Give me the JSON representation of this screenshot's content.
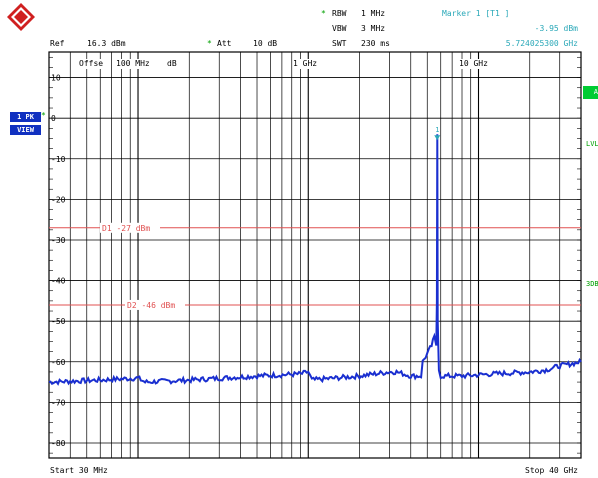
{
  "header": {
    "rbw_label": "RBW",
    "rbw_value": "1 MHz",
    "vbw_label": "VBW",
    "vbw_value": "3 MHz",
    "swt_label": "SWT",
    "swt_value": "230 ms",
    "ref_label": "Ref",
    "ref_value": "16.3 dBm",
    "att_label": "Att",
    "att_value": "10 dB",
    "star": "*"
  },
  "marker": {
    "title": "Marker 1 [T1 ]",
    "level": "-3.95 dBm",
    "frequency": "5.724025300 GHz",
    "number": "1"
  },
  "side_badges": [
    "1 PK",
    "VIEW"
  ],
  "side_labels": {
    "a": "A",
    "lvl": "LVL",
    "three_db": "3DB"
  },
  "grid": {
    "offset_label": "Offse",
    "y_ticks": [
      "10",
      "0",
      "-10",
      "-20",
      "-30",
      "-40",
      "-50",
      "-60",
      "-70",
      "-80"
    ],
    "x_labels": [
      "100 MHz",
      "dB",
      "1 GHz",
      "10 GHz"
    ]
  },
  "display_lines": [
    {
      "label": "D1",
      "value": "-27 dBm",
      "level_dbm": -27
    },
    {
      "label": "D2",
      "value": "-46 dBm",
      "level_dbm": -46
    }
  ],
  "footer": {
    "start": "Start 30 MHz",
    "stop": "Stop 40 GHz"
  },
  "colors": {
    "trace": "#1a2fd0",
    "display_line": "#e05050",
    "marker": "#2aa8b8",
    "grid": "#000000"
  },
  "chart_data": {
    "type": "line",
    "x_scale": "log",
    "xlim_hz": [
      30000000,
      40000000000
    ],
    "ylim_dbm": [
      -83.7,
      16.3
    ],
    "series": [
      {
        "x_hz": [
          30000000,
          60000000,
          100000000,
          110000000,
          200000000,
          500000000,
          900000000,
          1000000000,
          1050000000,
          2000000000,
          3000000000,
          3300000000,
          4000000000,
          4600000000,
          4700000000,
          5000000000,
          5300000000,
          5500000000,
          5650000000,
          5700000000,
          5724000000,
          5760000000,
          5850000000,
          6000000000,
          8000000000,
          12000000000,
          20000000000,
          25000000000,
          30000000000,
          35000000000,
          40000000000
        ],
        "y_dbm": [
          -65,
          -64.5,
          -64,
          -65,
          -64.5,
          -63.5,
          -63,
          -62.5,
          -64.5,
          -63.5,
          -62.5,
          -62.5,
          -63.5,
          -63.5,
          -60,
          -58,
          -56,
          -54,
          -56,
          -45,
          -3.95,
          -50,
          -62,
          -63.5,
          -63.5,
          -63,
          -62.5,
          -62,
          -61,
          -60.5,
          -60
        ]
      }
    ],
    "marker_dbm": -3.95,
    "marker_hz": 5724025300
  }
}
